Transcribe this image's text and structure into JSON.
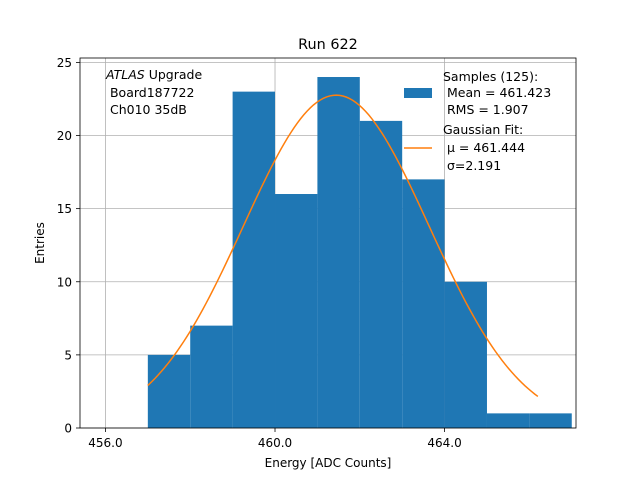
{
  "chart_data": {
    "type": "bar",
    "title": "Run 622",
    "xlabel": "Energy [ADC Counts]",
    "ylabel": "Entries",
    "xlim": [
      455.4,
      467.1
    ],
    "ylim": [
      0,
      25.3
    ],
    "grid": true,
    "x_ticks": [
      456,
      460,
      464
    ],
    "x_tick_labels": [
      "456.0",
      "460.0",
      "464.0"
    ],
    "y_ticks": [
      0,
      5,
      10,
      15,
      20,
      25
    ],
    "y_tick_labels": [
      "0",
      "5",
      "10",
      "15",
      "20",
      "25"
    ],
    "bin_edges": [
      457,
      458,
      459,
      460,
      461,
      462,
      463,
      464,
      465,
      466,
      467
    ],
    "counts": [
      5,
      7,
      23,
      16,
      24,
      21,
      17,
      10,
      1,
      1
    ],
    "gaussian_fit": {
      "mu": 461.444,
      "sigma": 2.191,
      "x_range": [
        457,
        466.2
      ]
    },
    "annotation": {
      "atlas": "ATLAS",
      "upgrade": " Upgrade",
      "board": " Board187722",
      "channel": " Ch010 35dB"
    },
    "legend": {
      "position": "top-right",
      "samples_title": "Samples (125):",
      "samples_mean": " Mean = 461.423",
      "samples_rms": " RMS = 1.907",
      "fit_title": "Gaussian Fit:",
      "fit_mu": " μ = 461.444",
      "fit_sigma": " σ=2.191"
    },
    "colors": {
      "histogram": "#1f77b4",
      "fit": "#ff7f0e",
      "grid": "#b0b0b0"
    }
  }
}
